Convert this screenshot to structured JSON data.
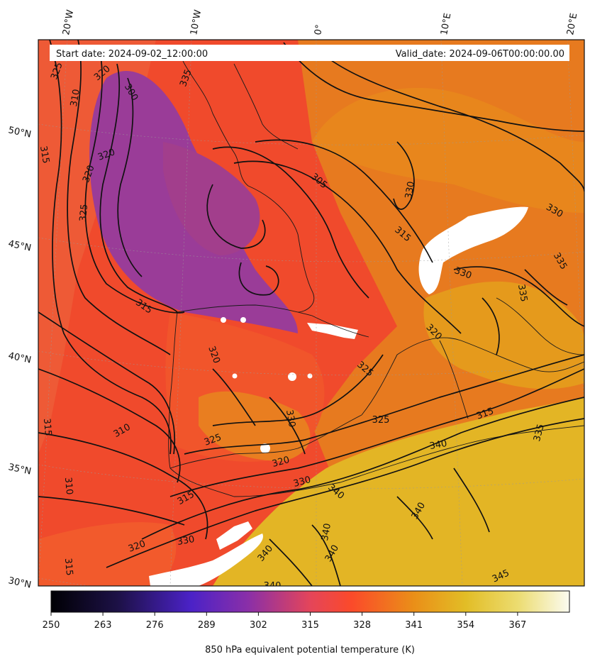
{
  "map": {
    "start_date_label": "Start date: 2024-09-02_12:00:00",
    "valid_date_label": "Valid_date: 2024-09-06T00:00:00.00",
    "lon_ticks": [
      "20°W",
      "10°W",
      "0°",
      "10°E",
      "20°E"
    ],
    "lat_ticks": [
      "50°N",
      "45°N",
      "40°N",
      "35°N",
      "30°N"
    ],
    "contour_labels": [
      "325",
      "320",
      "310",
      "300",
      "315",
      "320",
      "325",
      "320",
      "335",
      "330",
      "315",
      "305",
      "315",
      "320",
      "325",
      "330",
      "335",
      "330",
      "335",
      "320",
      "310",
      "315",
      "325",
      "330",
      "320",
      "330",
      "340",
      "340",
      "315",
      "320",
      "330",
      "340",
      "340",
      "340",
      "340",
      "325",
      "340",
      "345",
      "335",
      "310",
      "315",
      "315"
    ],
    "colors": {
      "cold": "#2b1b8f",
      "cool": "#9b3aa0",
      "mid": "#f04a2c",
      "warm": "#e8891a",
      "hot": "#e4c024",
      "contour": "#111111",
      "mask": "#ffffff"
    }
  },
  "colorbar": {
    "ticks": [
      "250",
      "263",
      "276",
      "289",
      "302",
      "315",
      "328",
      "341",
      "354",
      "367"
    ],
    "label": "850 hPa equivalent potential temperature (K)",
    "min": 250,
    "max": 380
  }
}
